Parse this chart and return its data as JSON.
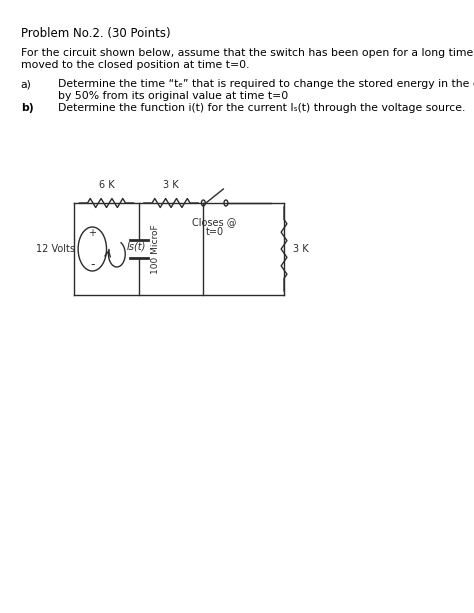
{
  "title": "Problem No.2. (30 Points)",
  "intro_line1": "For the circuit shown below, assume that the switch has been open for a long time and will",
  "intro_line2": "moved to the closed position at time t=0.",
  "part_a_label": "a)",
  "part_a_line1": "Determine the time “tₑ” that is required to change the stored energy in the capacitor",
  "part_a_line2": "by 50% from its original value at time t=0",
  "part_b_label": "b)",
  "part_b_text": "Determine the function i(t) for the current Iₛ(t) through the voltage source.",
  "bg_color": "#ffffff",
  "circuit_color": "#2b2b2b",
  "resistor1_label": "6 K",
  "resistor2_label": "3 K",
  "resistor3_label": "3 K",
  "capacitor_label": "100 MicroF",
  "voltage_label": "12 Volts",
  "current_label": "Is(t)",
  "switch_label_line1": "Closes @",
  "switch_label_line2": "t=0",
  "plus_sign": "+",
  "minus_sign": "-",
  "text_fs": 7.8,
  "title_fs": 8.5,
  "label_fs": 7.0
}
